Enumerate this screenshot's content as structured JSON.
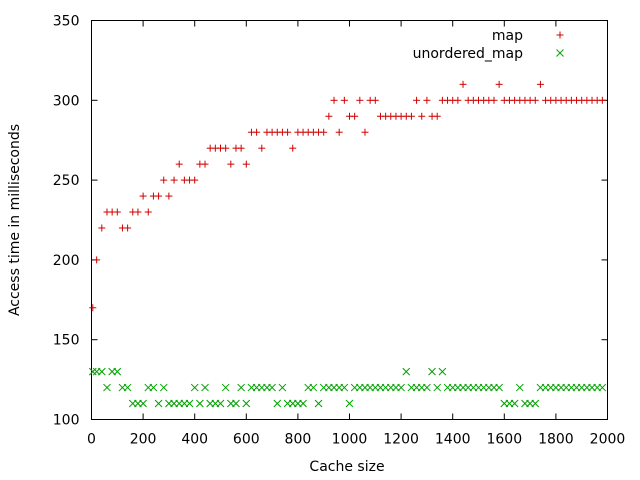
{
  "chart_data": {
    "type": "scatter",
    "title": "",
    "xlabel": "Cache size",
    "ylabel": "Access time in milliseconds",
    "xlim": [
      0,
      2000
    ],
    "ylim": [
      100,
      350
    ],
    "xticks": [
      0,
      200,
      400,
      600,
      800,
      1000,
      1200,
      1400,
      1600,
      1800,
      2000
    ],
    "yticks": [
      100,
      150,
      200,
      250,
      300,
      350
    ],
    "grid": false,
    "legend_position": "top-right",
    "series": [
      {
        "name": "map",
        "marker": "plus",
        "color": "#d00000",
        "x": [
          5,
          20,
          40,
          60,
          80,
          100,
          120,
          140,
          160,
          180,
          200,
          220,
          240,
          260,
          280,
          300,
          320,
          340,
          360,
          380,
          400,
          420,
          440,
          460,
          480,
          500,
          520,
          540,
          560,
          580,
          600,
          620,
          640,
          660,
          680,
          700,
          720,
          740,
          760,
          780,
          800,
          820,
          840,
          860,
          880,
          900,
          920,
          940,
          960,
          980,
          1000,
          1020,
          1040,
          1060,
          1080,
          1100,
          1120,
          1140,
          1160,
          1180,
          1200,
          1220,
          1240,
          1260,
          1280,
          1300,
          1320,
          1340,
          1360,
          1380,
          1400,
          1420,
          1440,
          1460,
          1480,
          1500,
          1520,
          1540,
          1560,
          1580,
          1600,
          1620,
          1640,
          1660,
          1680,
          1700,
          1720,
          1740,
          1760,
          1780,
          1800,
          1820,
          1840,
          1860,
          1880,
          1900,
          1920,
          1940,
          1960,
          1980
        ],
        "y": [
          170,
          200,
          220,
          230,
          230,
          230,
          220,
          220,
          230,
          230,
          240,
          230,
          240,
          240,
          250,
          240,
          250,
          260,
          250,
          250,
          250,
          260,
          260,
          270,
          270,
          270,
          270,
          260,
          270,
          270,
          260,
          280,
          280,
          270,
          280,
          280,
          280,
          280,
          280,
          270,
          280,
          280,
          280,
          280,
          280,
          280,
          290,
          300,
          280,
          300,
          290,
          290,
          300,
          280,
          300,
          300,
          290,
          290,
          290,
          290,
          290,
          290,
          290,
          300,
          290,
          300,
          290,
          290,
          300,
          300,
          300,
          300,
          310,
          300,
          300,
          300,
          300,
          300,
          300,
          310,
          300,
          300,
          300,
          300,
          300,
          300,
          300,
          310,
          300,
          300,
          300,
          300,
          300,
          300,
          300,
          300,
          300,
          300,
          300,
          300
        ]
      },
      {
        "name": "unordered_map",
        "marker": "cross",
        "color": "#00a000",
        "x": [
          5,
          20,
          40,
          60,
          80,
          100,
          120,
          140,
          160,
          180,
          200,
          220,
          240,
          260,
          280,
          300,
          320,
          340,
          360,
          380,
          400,
          420,
          440,
          460,
          480,
          500,
          520,
          540,
          560,
          580,
          600,
          620,
          640,
          660,
          680,
          700,
          720,
          740,
          760,
          780,
          800,
          820,
          840,
          860,
          880,
          900,
          920,
          940,
          960,
          980,
          1000,
          1020,
          1040,
          1060,
          1080,
          1100,
          1120,
          1140,
          1160,
          1180,
          1200,
          1220,
          1240,
          1260,
          1280,
          1300,
          1320,
          1340,
          1360,
          1380,
          1400,
          1420,
          1440,
          1460,
          1480,
          1500,
          1520,
          1540,
          1560,
          1580,
          1600,
          1620,
          1640,
          1660,
          1680,
          1700,
          1720,
          1740,
          1760,
          1780,
          1800,
          1820,
          1840,
          1860,
          1880,
          1900,
          1920,
          1940,
          1960,
          1980
        ],
        "y": [
          130,
          130,
          130,
          120,
          130,
          130,
          120,
          120,
          110,
          110,
          110,
          120,
          120,
          110,
          120,
          110,
          110,
          110,
          110,
          110,
          120,
          110,
          120,
          110,
          110,
          110,
          120,
          110,
          110,
          120,
          110,
          120,
          120,
          120,
          120,
          120,
          110,
          120,
          110,
          110,
          110,
          110,
          120,
          120,
          110,
          120,
          120,
          120,
          120,
          120,
          110,
          120,
          120,
          120,
          120,
          120,
          120,
          120,
          120,
          120,
          120,
          130,
          120,
          120,
          120,
          120,
          130,
          120,
          130,
          120,
          120,
          120,
          120,
          120,
          120,
          120,
          120,
          120,
          120,
          120,
          110,
          110,
          110,
          120,
          110,
          110,
          110,
          120,
          120,
          120,
          120,
          120,
          120,
          120,
          120,
          120,
          120,
          120,
          120,
          120
        ]
      }
    ]
  }
}
